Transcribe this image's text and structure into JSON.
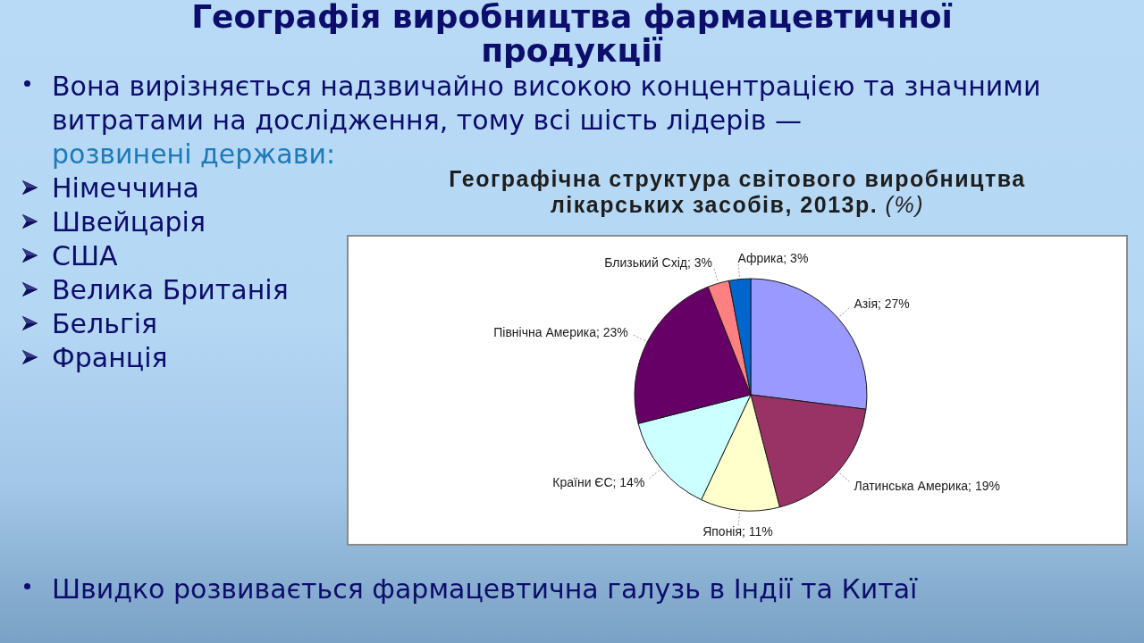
{
  "chart_data": {
    "type": "pie",
    "title": "Географія виробництва фармацевтичної продукції",
    "subtitle": "Географічна структура світового виробництва лікарських засобів, 2013р. (%)",
    "categories": [
      "Азія",
      "Латинська Америка",
      "Японія",
      "Країни ЄС",
      "Північна Америка",
      "Близький Схід",
      "Африка"
    ],
    "values": [
      27,
      19,
      11,
      14,
      23,
      3,
      3
    ],
    "colors": [
      "#9999ff",
      "#993366",
      "#ffffcc",
      "#ccffff",
      "#660066",
      "#ff8080",
      "#0066cc"
    ],
    "value_labels": [
      "27%",
      "19%",
      "11%",
      "14%",
      "23%",
      "3%",
      "3%"
    ],
    "annotations": [
      "Вона вирізняється надзвичайно високою концентрацією та значними витратами на дослідження, тому всі шість лідерів —",
      "розвинені держави:",
      "Німеччина",
      "Швейцарія",
      "США",
      "Велика Британія",
      "Бельгія",
      "Франція",
      "Швидко розвивається фармацевтична галузь в Індії та Китаї"
    ]
  }
}
